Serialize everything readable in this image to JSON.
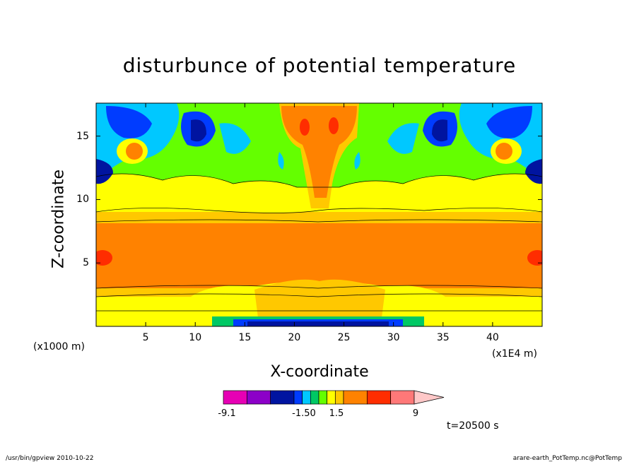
{
  "chart_data": {
    "type": "heatmap",
    "title": "disturbunce of potential temperature",
    "xlabel": "X-coordinate",
    "ylabel": "Z-coordinate",
    "x_unit_label": "(x1000 m)",
    "x_scale_label": "(x1E4 m)",
    "xlim": [
      0,
      45
    ],
    "ylim": [
      0,
      17.6
    ],
    "x_ticks": [
      "5",
      "10",
      "15",
      "20",
      "25",
      "30",
      "35",
      "40"
    ],
    "y_ticks": [
      "5",
      "10",
      "15"
    ],
    "colorbar": {
      "colors": [
        "#e600b4",
        "#8c00c8",
        "#0014a0",
        "#003cff",
        "#00c8ff",
        "#00c864",
        "#64ff00",
        "#ffff00",
        "#ffc800",
        "#ff8200",
        "#ff2d00",
        "#ff7878",
        "#ffc8c8"
      ],
      "tick_labels": [
        "-9.1",
        "-1.50",
        "1.5",
        "9"
      ],
      "extend": "max"
    },
    "time_label": "t=20500 s"
  },
  "footer": {
    "left": "/usr/bin/gpview   2010-10-22",
    "right": "arare-earth_PotTemp.nc@PotTemp"
  }
}
